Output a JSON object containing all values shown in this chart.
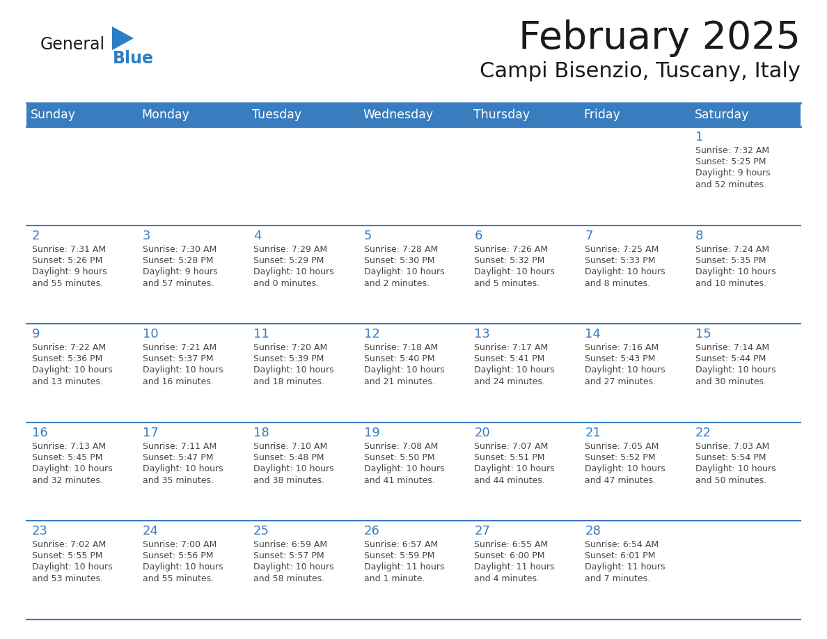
{
  "title": "February 2025",
  "subtitle": "Campi Bisenzio, Tuscany, Italy",
  "header_bg": "#3a7dbf",
  "header_text": "#ffffff",
  "border_color": "#3a7dbf",
  "day_number_color": "#3a7dbf",
  "cell_text_color": "#444444",
  "days_of_week": [
    "Sunday",
    "Monday",
    "Tuesday",
    "Wednesday",
    "Thursday",
    "Friday",
    "Saturday"
  ],
  "weeks": [
    [
      {
        "day": null,
        "sunrise": null,
        "sunset": null,
        "daylight": null
      },
      {
        "day": null,
        "sunrise": null,
        "sunset": null,
        "daylight": null
      },
      {
        "day": null,
        "sunrise": null,
        "sunset": null,
        "daylight": null
      },
      {
        "day": null,
        "sunrise": null,
        "sunset": null,
        "daylight": null
      },
      {
        "day": null,
        "sunrise": null,
        "sunset": null,
        "daylight": null
      },
      {
        "day": null,
        "sunrise": null,
        "sunset": null,
        "daylight": null
      },
      {
        "day": 1,
        "sunrise": "7:32 AM",
        "sunset": "5:25 PM",
        "daylight": "9 hours\nand 52 minutes."
      }
    ],
    [
      {
        "day": 2,
        "sunrise": "7:31 AM",
        "sunset": "5:26 PM",
        "daylight": "9 hours\nand 55 minutes."
      },
      {
        "day": 3,
        "sunrise": "7:30 AM",
        "sunset": "5:28 PM",
        "daylight": "9 hours\nand 57 minutes."
      },
      {
        "day": 4,
        "sunrise": "7:29 AM",
        "sunset": "5:29 PM",
        "daylight": "10 hours\nand 0 minutes."
      },
      {
        "day": 5,
        "sunrise": "7:28 AM",
        "sunset": "5:30 PM",
        "daylight": "10 hours\nand 2 minutes."
      },
      {
        "day": 6,
        "sunrise": "7:26 AM",
        "sunset": "5:32 PM",
        "daylight": "10 hours\nand 5 minutes."
      },
      {
        "day": 7,
        "sunrise": "7:25 AM",
        "sunset": "5:33 PM",
        "daylight": "10 hours\nand 8 minutes."
      },
      {
        "day": 8,
        "sunrise": "7:24 AM",
        "sunset": "5:35 PM",
        "daylight": "10 hours\nand 10 minutes."
      }
    ],
    [
      {
        "day": 9,
        "sunrise": "7:22 AM",
        "sunset": "5:36 PM",
        "daylight": "10 hours\nand 13 minutes."
      },
      {
        "day": 10,
        "sunrise": "7:21 AM",
        "sunset": "5:37 PM",
        "daylight": "10 hours\nand 16 minutes."
      },
      {
        "day": 11,
        "sunrise": "7:20 AM",
        "sunset": "5:39 PM",
        "daylight": "10 hours\nand 18 minutes."
      },
      {
        "day": 12,
        "sunrise": "7:18 AM",
        "sunset": "5:40 PM",
        "daylight": "10 hours\nand 21 minutes."
      },
      {
        "day": 13,
        "sunrise": "7:17 AM",
        "sunset": "5:41 PM",
        "daylight": "10 hours\nand 24 minutes."
      },
      {
        "day": 14,
        "sunrise": "7:16 AM",
        "sunset": "5:43 PM",
        "daylight": "10 hours\nand 27 minutes."
      },
      {
        "day": 15,
        "sunrise": "7:14 AM",
        "sunset": "5:44 PM",
        "daylight": "10 hours\nand 30 minutes."
      }
    ],
    [
      {
        "day": 16,
        "sunrise": "7:13 AM",
        "sunset": "5:45 PM",
        "daylight": "10 hours\nand 32 minutes."
      },
      {
        "day": 17,
        "sunrise": "7:11 AM",
        "sunset": "5:47 PM",
        "daylight": "10 hours\nand 35 minutes."
      },
      {
        "day": 18,
        "sunrise": "7:10 AM",
        "sunset": "5:48 PM",
        "daylight": "10 hours\nand 38 minutes."
      },
      {
        "day": 19,
        "sunrise": "7:08 AM",
        "sunset": "5:50 PM",
        "daylight": "10 hours\nand 41 minutes."
      },
      {
        "day": 20,
        "sunrise": "7:07 AM",
        "sunset": "5:51 PM",
        "daylight": "10 hours\nand 44 minutes."
      },
      {
        "day": 21,
        "sunrise": "7:05 AM",
        "sunset": "5:52 PM",
        "daylight": "10 hours\nand 47 minutes."
      },
      {
        "day": 22,
        "sunrise": "7:03 AM",
        "sunset": "5:54 PM",
        "daylight": "10 hours\nand 50 minutes."
      }
    ],
    [
      {
        "day": 23,
        "sunrise": "7:02 AM",
        "sunset": "5:55 PM",
        "daylight": "10 hours\nand 53 minutes."
      },
      {
        "day": 24,
        "sunrise": "7:00 AM",
        "sunset": "5:56 PM",
        "daylight": "10 hours\nand 55 minutes."
      },
      {
        "day": 25,
        "sunrise": "6:59 AM",
        "sunset": "5:57 PM",
        "daylight": "10 hours\nand 58 minutes."
      },
      {
        "day": 26,
        "sunrise": "6:57 AM",
        "sunset": "5:59 PM",
        "daylight": "11 hours\nand 1 minute."
      },
      {
        "day": 27,
        "sunrise": "6:55 AM",
        "sunset": "6:00 PM",
        "daylight": "11 hours\nand 4 minutes."
      },
      {
        "day": 28,
        "sunrise": "6:54 AM",
        "sunset": "6:01 PM",
        "daylight": "11 hours\nand 7 minutes."
      },
      {
        "day": null,
        "sunrise": null,
        "sunset": null,
        "daylight": null
      }
    ]
  ],
  "logo_general_color": "#1a1a1a",
  "logo_blue_color": "#2b7fc2",
  "logo_triangle_color": "#2b7fc2",
  "fig_width": 11.88,
  "fig_height": 9.18,
  "dpi": 100
}
